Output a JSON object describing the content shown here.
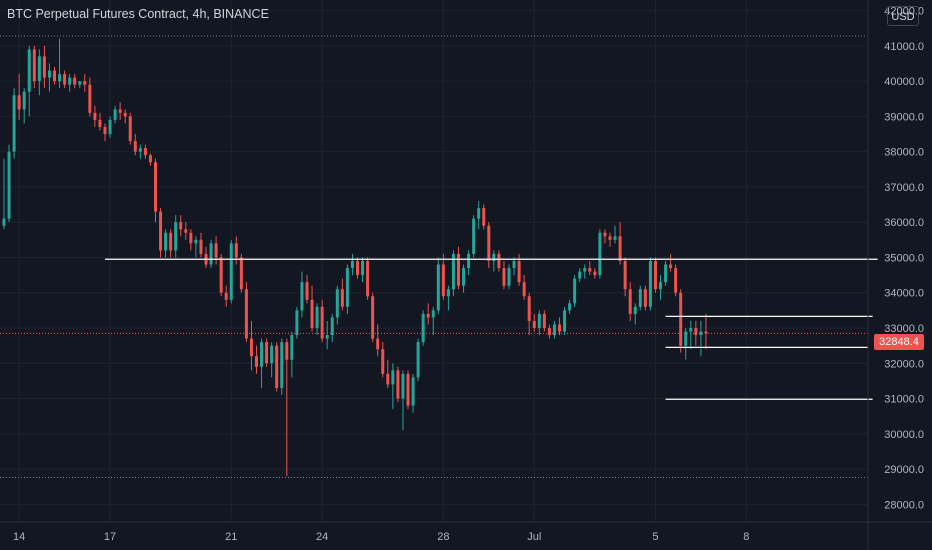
{
  "header": {
    "title": "BTC Perpetual Futures Contract, 4h, BINANCE",
    "currency_button": "USD"
  },
  "last_price": {
    "value": 32848.4,
    "label": "32848.4",
    "color": "#ef5350"
  },
  "colors": {
    "up": "#26a69a",
    "down": "#ef5350",
    "background": "#131722",
    "grid": "#1e222d",
    "level_line": "#ffffff"
  },
  "chart_data": {
    "type": "candlestick",
    "title": "BTC Perpetual Futures Contract, 4h, BINANCE",
    "ylim": [
      27500,
      42300
    ],
    "yticks": [
      28000,
      29000,
      30000,
      31000,
      32000,
      33000,
      34000,
      35000,
      36000,
      37000,
      38000,
      39000,
      40000,
      41000,
      42000
    ],
    "ytick_labels": [
      "28000.0",
      "29000.0",
      "30000.0",
      "31000.0",
      "32000.0",
      "33000.0",
      "34000.0",
      "35000.0",
      "36000.0",
      "37000.0",
      "38000.0",
      "39000.0",
      "40000.0",
      "41000.0",
      "42000.0"
    ],
    "xticks": [
      {
        "label": "14",
        "index": 3
      },
      {
        "label": "17",
        "index": 21
      },
      {
        "label": "21",
        "index": 45
      },
      {
        "label": "24",
        "index": 63
      },
      {
        "label": "28",
        "index": 87
      },
      {
        "label": "Jul",
        "index": 105
      },
      {
        "label": "5",
        "index": 129
      },
      {
        "label": "8",
        "index": 147
      }
    ],
    "candles": [
      [
        35900,
        37800,
        35800,
        36100
      ],
      [
        36100,
        38200,
        36000,
        38000
      ],
      [
        38000,
        39800,
        37800,
        39600
      ],
      [
        39600,
        40200,
        38900,
        39200
      ],
      [
        39200,
        39800,
        38800,
        39700
      ],
      [
        39700,
        41000,
        39000,
        40900
      ],
      [
        40900,
        41000,
        39800,
        40000
      ],
      [
        40000,
        40900,
        39600,
        40700
      ],
      [
        40700,
        41000,
        39800,
        40100
      ],
      [
        40100,
        40500,
        39700,
        40300
      ],
      [
        40300,
        40400,
        39900,
        40000
      ],
      [
        40000,
        41200,
        39800,
        40200
      ],
      [
        40200,
        40300,
        39800,
        39900
      ],
      [
        39900,
        40200,
        39700,
        40100
      ],
      [
        40100,
        40200,
        39800,
        39900
      ],
      [
        39900,
        40000,
        39800,
        40000
      ],
      [
        40000,
        40200,
        39700,
        39900
      ],
      [
        39900,
        40100,
        39000,
        39100
      ],
      [
        39100,
        39300,
        38700,
        38900
      ],
      [
        38900,
        39100,
        38600,
        38700
      ],
      [
        38700,
        38800,
        38300,
        38500
      ],
      [
        38500,
        39000,
        38400,
        38900
      ],
      [
        38900,
        39300,
        38800,
        39200
      ],
      [
        39200,
        39400,
        38900,
        39100
      ],
      [
        39100,
        39200,
        38800,
        39000
      ],
      [
        39000,
        39100,
        38200,
        38300
      ],
      [
        38300,
        38500,
        37900,
        38000
      ],
      [
        38000,
        38200,
        37800,
        38100
      ],
      [
        38100,
        38200,
        37800,
        37900
      ],
      [
        37900,
        37950,
        37600,
        37700
      ],
      [
        37700,
        37800,
        36000,
        36300
      ],
      [
        36300,
        36400,
        35000,
        35200
      ],
      [
        35200,
        35800,
        35000,
        35700
      ],
      [
        35700,
        35800,
        35000,
        35200
      ],
      [
        35200,
        36200,
        35000,
        36000
      ],
      [
        36000,
        36200,
        35600,
        35800
      ],
      [
        35800,
        36000,
        35500,
        35700
      ],
      [
        35700,
        35800,
        35200,
        35400
      ],
      [
        35400,
        35600,
        35000,
        35500
      ],
      [
        35500,
        35700,
        35000,
        35100
      ],
      [
        35100,
        35300,
        34700,
        34800
      ],
      [
        34800,
        35500,
        34700,
        35400
      ],
      [
        35400,
        35600,
        34800,
        35000
      ],
      [
        35000,
        35100,
        33900,
        34000
      ],
      [
        34000,
        34200,
        33600,
        33800
      ],
      [
        33800,
        35500,
        33700,
        35400
      ],
      [
        35400,
        35600,
        34800,
        35000
      ],
      [
        35000,
        35100,
        34000,
        34100
      ],
      [
        34100,
        34300,
        32600,
        32700
      ],
      [
        32700,
        33200,
        31800,
        32200
      ],
      [
        32200,
        32500,
        31700,
        31900
      ],
      [
        31900,
        32700,
        31300,
        32600
      ],
      [
        32600,
        32700,
        31900,
        32000
      ],
      [
        32000,
        32600,
        31600,
        32500
      ],
      [
        32500,
        32600,
        31200,
        31300
      ],
      [
        31300,
        32700,
        31100,
        32600
      ],
      [
        32600,
        32700,
        28800,
        32100
      ],
      [
        32100,
        32900,
        31600,
        32800
      ],
      [
        32800,
        33600,
        32700,
        33500
      ],
      [
        33500,
        34600,
        33300,
        34300
      ],
      [
        34300,
        34500,
        33700,
        33800
      ],
      [
        33800,
        34200,
        32900,
        33000
      ],
      [
        33000,
        33700,
        32800,
        33600
      ],
      [
        33600,
        33800,
        32600,
        32700
      ],
      [
        32700,
        33200,
        32400,
        32800
      ],
      [
        32800,
        33400,
        32600,
        33300
      ],
      [
        33300,
        34200,
        33100,
        34100
      ],
      [
        34100,
        34400,
        33500,
        33600
      ],
      [
        33600,
        34800,
        33400,
        34700
      ],
      [
        34700,
        35100,
        34500,
        34900
      ],
      [
        34900,
        35000,
        34400,
        34500
      ],
      [
        34500,
        35000,
        34300,
        34900
      ],
      [
        34900,
        35000,
        33800,
        33900
      ],
      [
        33900,
        34000,
        32600,
        32700
      ],
      [
        32700,
        33100,
        32200,
        32400
      ],
      [
        32400,
        32600,
        31600,
        31700
      ],
      [
        31700,
        32100,
        31300,
        31400
      ],
      [
        31400,
        32000,
        30700,
        31800
      ],
      [
        31800,
        31900,
        30900,
        31000
      ],
      [
        31000,
        31800,
        30100,
        31700
      ],
      [
        31700,
        31800,
        30700,
        30800
      ],
      [
        30800,
        31700,
        30600,
        31600
      ],
      [
        31600,
        32700,
        31500,
        32600
      ],
      [
        32600,
        33500,
        32500,
        33400
      ],
      [
        33400,
        33700,
        33100,
        33300
      ],
      [
        33300,
        33600,
        32800,
        33500
      ],
      [
        33500,
        35000,
        33400,
        34800
      ],
      [
        34800,
        35100,
        33800,
        33900
      ],
      [
        33900,
        34200,
        33500,
        34100
      ],
      [
        34100,
        35200,
        33900,
        35100
      ],
      [
        35100,
        35300,
        34100,
        34200
      ],
      [
        34200,
        34800,
        34000,
        34700
      ],
      [
        34700,
        35200,
        34500,
        35100
      ],
      [
        35100,
        36200,
        35000,
        36100
      ],
      [
        36100,
        36600,
        35800,
        36400
      ],
      [
        36400,
        36500,
        35800,
        35900
      ],
      [
        35900,
        36000,
        34700,
        34900
      ],
      [
        34900,
        35200,
        34600,
        35100
      ],
      [
        35100,
        35200,
        34600,
        34700
      ],
      [
        34700,
        34900,
        34100,
        34200
      ],
      [
        34200,
        34800,
        34100,
        34700
      ],
      [
        34700,
        35000,
        34500,
        34900
      ],
      [
        34900,
        35100,
        34200,
        34300
      ],
      [
        34300,
        34500,
        33800,
        33900
      ],
      [
        33900,
        34000,
        32800,
        33200
      ],
      [
        33200,
        33400,
        32900,
        33000
      ],
      [
        33000,
        33500,
        32800,
        33400
      ],
      [
        33400,
        33500,
        32900,
        33000
      ],
      [
        33000,
        33100,
        32700,
        32800
      ],
      [
        32800,
        33200,
        32700,
        33100
      ],
      [
        33100,
        33300,
        32800,
        32900
      ],
      [
        32900,
        33600,
        32800,
        33500
      ],
      [
        33500,
        33800,
        33400,
        33700
      ],
      [
        33700,
        34500,
        33600,
        34400
      ],
      [
        34400,
        34700,
        34300,
        34600
      ],
      [
        34600,
        34800,
        34400,
        34700
      ],
      [
        34700,
        34900,
        34500,
        34600
      ],
      [
        34600,
        34700,
        34400,
        34500
      ],
      [
        34500,
        35800,
        34400,
        35700
      ],
      [
        35700,
        35800,
        35400,
        35600
      ],
      [
        35600,
        35700,
        35300,
        35500
      ],
      [
        35500,
        35900,
        35400,
        35600
      ],
      [
        35600,
        36000,
        34800,
        34900
      ],
      [
        34900,
        35000,
        33900,
        34100
      ],
      [
        34100,
        34300,
        33200,
        33400
      ],
      [
        33400,
        33700,
        33100,
        33600
      ],
      [
        33600,
        34200,
        33500,
        34100
      ],
      [
        34100,
        34200,
        33500,
        33600
      ],
      [
        33600,
        35000,
        33500,
        34900
      ],
      [
        34900,
        35000,
        34000,
        34100
      ],
      [
        34100,
        34500,
        33800,
        34300
      ],
      [
        34300,
        34900,
        34200,
        34800
      ],
      [
        34800,
        35100,
        34600,
        34700
      ],
      [
        34700,
        34800,
        33900,
        34000
      ],
      [
        34000,
        34100,
        32300,
        32500
      ],
      [
        32500,
        33000,
        32100,
        32900
      ],
      [
        32900,
        33200,
        32400,
        33000
      ],
      [
        33000,
        33200,
        32500,
        32800
      ],
      [
        32800,
        33200,
        32200,
        32900
      ],
      [
        32900,
        33400,
        32400,
        32848.4
      ]
    ],
    "price_lines": [
      {
        "y": 34950,
        "x_start_index": 20,
        "x_end_index": 173
      },
      {
        "y": 33330,
        "x_start_index": 131,
        "x_end_index": 172
      },
      {
        "y": 32450,
        "x_start_index": 131,
        "x_end_index": 171
      },
      {
        "y": 30980,
        "x_start_index": 131,
        "x_end_index": 172
      }
    ],
    "dotted_lines": [
      41280,
      28760
    ]
  }
}
